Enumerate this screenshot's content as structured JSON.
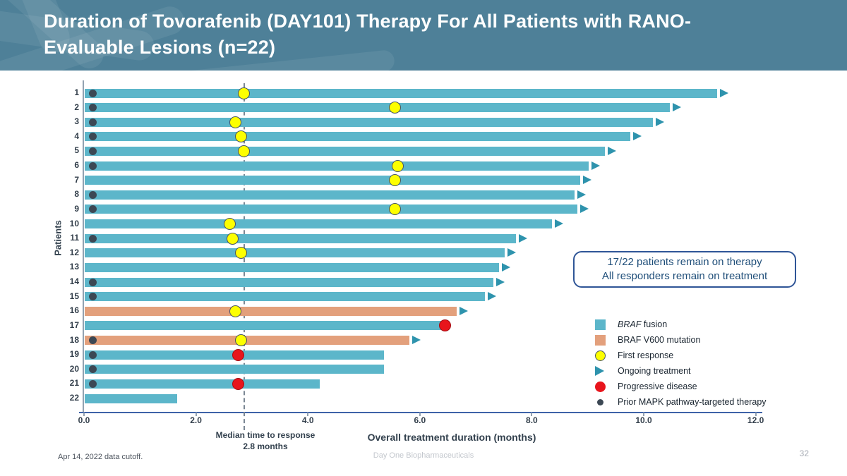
{
  "header": {
    "title_line1": "Duration of Tovorafenib (DAY101) Therapy For All Patients with RANO-",
    "title_line2": "Evaluable Lesions (n=22)"
  },
  "annotation_box": {
    "line1": "17/22 patients remain on therapy",
    "line2": "All responders remain on treatment"
  },
  "chart_data": {
    "type": "bar",
    "subtype": "swimmer-plot",
    "orientation": "horizontal",
    "xlabel": "Overall treatment duration (months)",
    "ylabel": "Patients",
    "xlim": [
      0,
      12
    ],
    "xtick_labels": [
      "0.0",
      "2.0",
      "4.0",
      "6.0",
      "8.0",
      "10.0",
      "12.0"
    ],
    "xtick_values": [
      0,
      2,
      4,
      6,
      8,
      10,
      12
    ],
    "median_line": {
      "x": 2.85,
      "label_line1": "Median time to response",
      "label_line2": "2.8 months"
    },
    "patients": [
      {
        "label": "1",
        "duration": 11.3,
        "type": "fusion",
        "ongoing": true,
        "prior_mapk": true,
        "first_response": 2.85,
        "progressive_disease": null
      },
      {
        "label": "2",
        "duration": 10.45,
        "type": "fusion",
        "ongoing": true,
        "prior_mapk": true,
        "first_response": 5.55,
        "progressive_disease": null
      },
      {
        "label": "3",
        "duration": 10.15,
        "type": "fusion",
        "ongoing": true,
        "prior_mapk": true,
        "first_response": 2.7,
        "progressive_disease": null
      },
      {
        "label": "4",
        "duration": 9.75,
        "type": "fusion",
        "ongoing": true,
        "prior_mapk": true,
        "first_response": 2.8,
        "progressive_disease": null
      },
      {
        "label": "5",
        "duration": 9.3,
        "type": "fusion",
        "ongoing": true,
        "prior_mapk": true,
        "first_response": 2.85,
        "progressive_disease": null
      },
      {
        "label": "6",
        "duration": 9.0,
        "type": "fusion",
        "ongoing": true,
        "prior_mapk": true,
        "first_response": 5.6,
        "progressive_disease": null
      },
      {
        "label": "7",
        "duration": 8.85,
        "type": "fusion",
        "ongoing": true,
        "prior_mapk": false,
        "first_response": 5.55,
        "progressive_disease": null
      },
      {
        "label": "8",
        "duration": 8.75,
        "type": "fusion",
        "ongoing": true,
        "prior_mapk": true,
        "first_response": null,
        "progressive_disease": null
      },
      {
        "label": "9",
        "duration": 8.8,
        "type": "fusion",
        "ongoing": true,
        "prior_mapk": true,
        "first_response": 5.55,
        "progressive_disease": null
      },
      {
        "label": "10",
        "duration": 8.35,
        "type": "fusion",
        "ongoing": true,
        "prior_mapk": false,
        "first_response": 2.6,
        "progressive_disease": null
      },
      {
        "label": "11",
        "duration": 7.7,
        "type": "fusion",
        "ongoing": true,
        "prior_mapk": true,
        "first_response": 2.65,
        "progressive_disease": null
      },
      {
        "label": "12",
        "duration": 7.5,
        "type": "fusion",
        "ongoing": true,
        "prior_mapk": false,
        "first_response": 2.8,
        "progressive_disease": null
      },
      {
        "label": "13",
        "duration": 7.4,
        "type": "fusion",
        "ongoing": true,
        "prior_mapk": false,
        "first_response": null,
        "progressive_disease": null
      },
      {
        "label": "14",
        "duration": 7.3,
        "type": "fusion",
        "ongoing": true,
        "prior_mapk": true,
        "first_response": null,
        "progressive_disease": null
      },
      {
        "label": "15",
        "duration": 7.15,
        "type": "fusion",
        "ongoing": true,
        "prior_mapk": true,
        "first_response": null,
        "progressive_disease": null
      },
      {
        "label": "16",
        "duration": 6.65,
        "type": "v600",
        "ongoing": true,
        "prior_mapk": false,
        "first_response": 2.7,
        "progressive_disease": null
      },
      {
        "label": "17",
        "duration": 6.45,
        "type": "fusion",
        "ongoing": false,
        "prior_mapk": false,
        "first_response": null,
        "progressive_disease": 6.45
      },
      {
        "label": "18",
        "duration": 5.8,
        "type": "v600",
        "ongoing": true,
        "prior_mapk": true,
        "first_response": 2.8,
        "progressive_disease": null
      },
      {
        "label": "19",
        "duration": 5.35,
        "type": "fusion",
        "ongoing": false,
        "prior_mapk": true,
        "first_response": null,
        "progressive_disease": 2.75
      },
      {
        "label": "20",
        "duration": 5.35,
        "type": "fusion",
        "ongoing": false,
        "prior_mapk": true,
        "first_response": null,
        "progressive_disease": null
      },
      {
        "label": "21",
        "duration": 4.2,
        "type": "fusion",
        "ongoing": false,
        "prior_mapk": true,
        "first_response": null,
        "progressive_disease": 2.75
      },
      {
        "label": "22",
        "duration": 1.65,
        "type": "fusion",
        "ongoing": false,
        "prior_mapk": false,
        "first_response": null,
        "progressive_disease": null
      }
    ]
  },
  "legend": [
    {
      "marker": "fusion-swatch-icon",
      "label_em": "BRAF",
      "label_text": " fusion"
    },
    {
      "marker": "v600-swatch-icon",
      "label_em": "",
      "label_text": "BRAF V600 mutation"
    },
    {
      "marker": "first-response-icon",
      "label_em": "",
      "label_text": "First response"
    },
    {
      "marker": "ongoing-treatment-icon",
      "label_em": "",
      "label_text": "Ongoing treatment"
    },
    {
      "marker": "progressive-disease-icon",
      "label_em": "",
      "label_text": "Progressive disease"
    },
    {
      "marker": "prior-mapk-icon",
      "label_em": "",
      "label_text": "Prior MAPK pathway-targeted therapy"
    }
  ],
  "footer": {
    "left": "Apr 14, 2022 data cutoff.",
    "center": "Day One Biopharmaceuticals",
    "page": "32"
  },
  "colors": {
    "header_bg": "#4E8098",
    "bar_fusion": "#5CB6CA",
    "bar_v600": "#E3A07C",
    "arrow": "#2E93AD",
    "first_response_fill": "#FDFF00",
    "marker_outline": "#4A5560",
    "progressive_fill": "#E8151C",
    "prior_dot": "#3C4854"
  }
}
